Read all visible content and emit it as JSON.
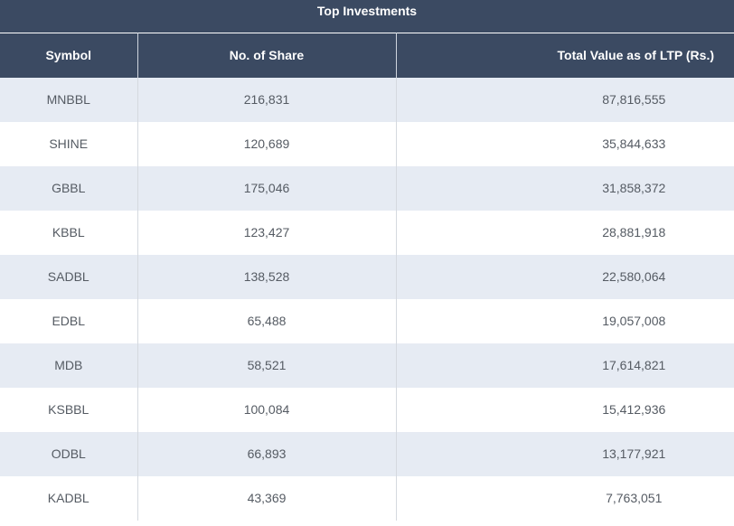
{
  "title": "Top Investments",
  "columns": {
    "symbol": "Symbol",
    "shares": "No. of Share",
    "value": "Total Value as of LTP (Rs.)"
  },
  "rows": [
    {
      "symbol": "MNBBL",
      "shares": "216,831",
      "value": "87,816,555"
    },
    {
      "symbol": "SHINE",
      "shares": "120,689",
      "value": "35,844,633"
    },
    {
      "symbol": "GBBL",
      "shares": "175,046",
      "value": "31,858,372"
    },
    {
      "symbol": "KBBL",
      "shares": "123,427",
      "value": "28,881,918"
    },
    {
      "symbol": "SADBL",
      "shares": "138,528",
      "value": "22,580,064"
    },
    {
      "symbol": "EDBL",
      "shares": "65,488",
      "value": "19,057,008"
    },
    {
      "symbol": "MDB",
      "shares": "58,521",
      "value": "17,614,821"
    },
    {
      "symbol": "KSBBL",
      "shares": "100,084",
      "value": "15,412,936"
    },
    {
      "symbol": "ODBL",
      "shares": "66,893",
      "value": "13,177,921"
    },
    {
      "symbol": "KADBL",
      "shares": "43,369",
      "value": "7,763,051"
    }
  ],
  "colors": {
    "header_bg": "#3b4a62",
    "row_alt_bg": "#e6ebf3"
  }
}
